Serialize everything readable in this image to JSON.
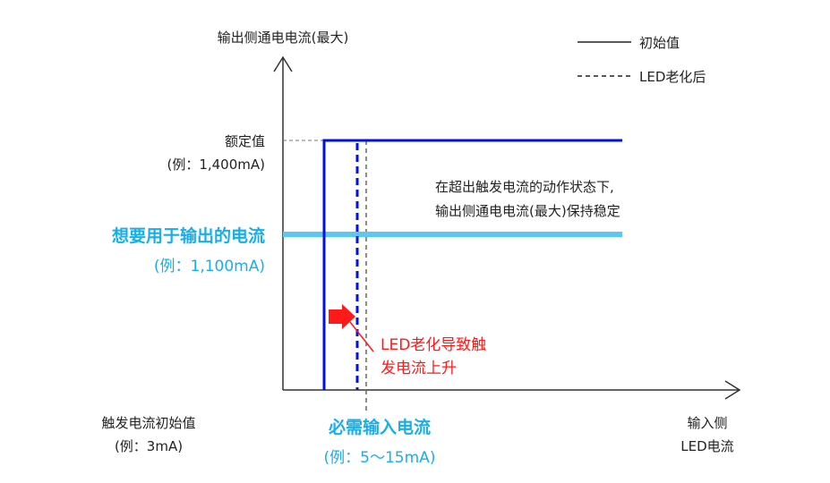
{
  "y_axis_label": "输出侧通电电流(最大)",
  "x_axis_label": [
    "输入侧",
    "LED电流"
  ],
  "legend": [
    {
      "label": "初始值",
      "style": "solid"
    },
    {
      "label": "LED老化后",
      "style": "dashed"
    }
  ],
  "rated": {
    "title": "额定值",
    "example": "(例：1,400mA)"
  },
  "desired": {
    "title": "想要用于输出的电流",
    "example": "(例：1,100mA)"
  },
  "trigger": {
    "title": "触发电流初始值",
    "example": "(例：3mA)"
  },
  "required": {
    "title": "必需输入电流",
    "example": "(例：5～15mA)"
  },
  "note": [
    "在超出触发电流的动作状态下,",
    "输出侧通电电流(最大)保持稳定"
  ],
  "aging_note": [
    "LED老化导致触",
    "发电流上升"
  ],
  "colors": {
    "curve": "#0010e8",
    "desired_line": "#5cc8f0",
    "desired_text": "#1aaee8",
    "aging": "#ff1a1a",
    "axis": "#333333"
  }
}
